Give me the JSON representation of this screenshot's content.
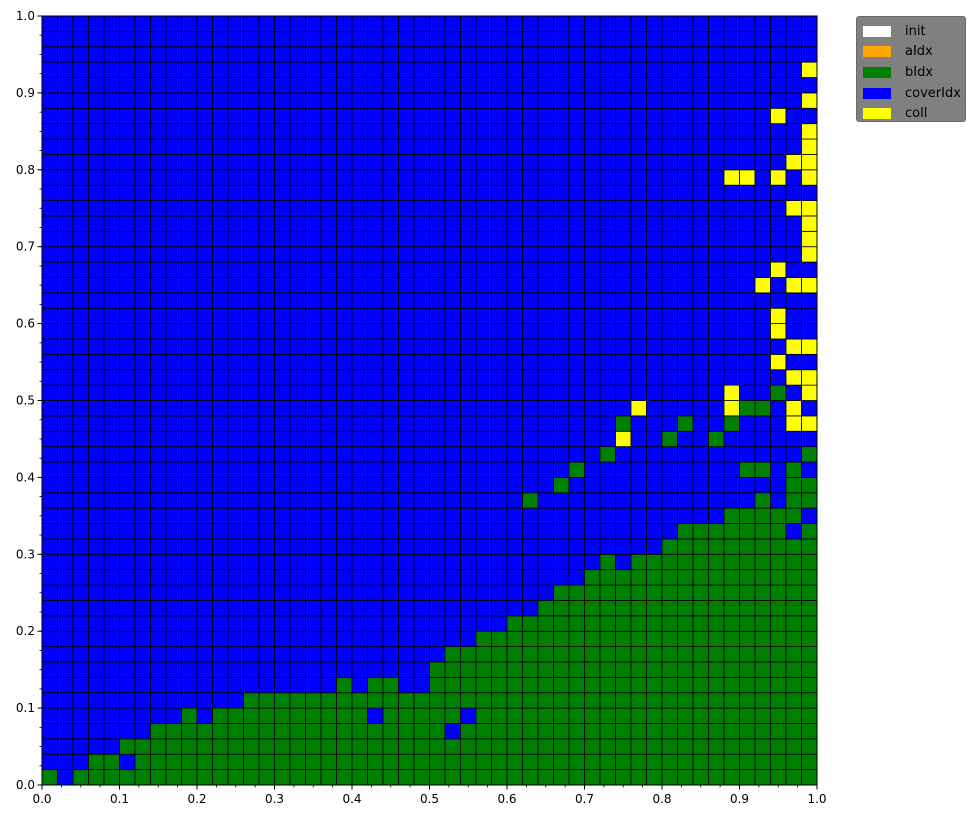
{
  "chart_data": {
    "type": "heatmap",
    "grid_size": 50,
    "xlim": [
      0.0,
      1.0
    ],
    "ylim": [
      0.0,
      1.0
    ],
    "xticks": [
      0.0,
      0.1,
      0.2,
      0.3,
      0.4,
      0.5,
      0.6,
      0.7,
      0.8,
      0.9,
      1.0
    ],
    "yticks": [
      0.0,
      0.1,
      0.2,
      0.3,
      0.4,
      0.5,
      0.6,
      0.7,
      0.8,
      0.9,
      1.0
    ],
    "xtick_labels": [
      "0.0",
      "0.1",
      "0.2",
      "0.3",
      "0.4",
      "0.5",
      "0.6",
      "0.7",
      "0.8",
      "0.9",
      "1.0"
    ],
    "ytick_labels": [
      "0.0",
      "0.1",
      "0.2",
      "0.3",
      "0.4",
      "0.5",
      "0.6",
      "0.7",
      "0.8",
      "0.9",
      "1.0"
    ],
    "default_category": "coverIdx",
    "categories": [
      {
        "name": "init",
        "color": "#ffffff"
      },
      {
        "name": "aIdx",
        "color": "#ffa500"
      },
      {
        "name": "bIdx",
        "color": "#008000"
      },
      {
        "name": "coverIdx",
        "color": "#0000ff"
      },
      {
        "name": "coll",
        "color": "#ffff00"
      }
    ],
    "green_column_heights": [
      1,
      0,
      1,
      2,
      2,
      3,
      3,
      4,
      4,
      5,
      4,
      5,
      5,
      6,
      6,
      6,
      6,
      6,
      6,
      7,
      6,
      7,
      7,
      6,
      6,
      8,
      9,
      9,
      10,
      10,
      11,
      11,
      12,
      13,
      13,
      14,
      15,
      14,
      15,
      15,
      16,
      17,
      17,
      17,
      18,
      18,
      19,
      19,
      20,
      20
    ],
    "blue_cells": [
      [
        1,
        0
      ],
      [
        5,
        1
      ],
      [
        21,
        4
      ],
      [
        22,
        12
      ],
      [
        26,
        14
      ],
      [
        28,
        15
      ],
      [
        30,
        18
      ],
      [
        32,
        17
      ],
      [
        32,
        18
      ],
      [
        33,
        18
      ],
      [
        35,
        17
      ],
      [
        36,
        17
      ],
      [
        26,
        3
      ],
      [
        27,
        4
      ],
      [
        35,
        21
      ],
      [
        36,
        20
      ],
      [
        38,
        22
      ],
      [
        36,
        22
      ],
      [
        47,
        18
      ],
      [
        48,
        16
      ],
      [
        49,
        17
      ],
      [
        44,
        20
      ],
      [
        46,
        21
      ],
      [
        47,
        20
      ],
      [
        47,
        21
      ]
    ],
    "green_cells": [
      [
        31,
        18
      ],
      [
        33,
        19
      ],
      [
        34,
        20
      ],
      [
        36,
        21
      ],
      [
        40,
        22
      ],
      [
        41,
        23
      ],
      [
        44,
        23
      ],
      [
        45,
        24
      ],
      [
        46,
        24
      ],
      [
        45,
        20
      ],
      [
        46,
        20
      ],
      [
        43,
        22
      ],
      [
        48,
        20
      ],
      [
        49,
        21
      ],
      [
        47,
        25
      ],
      [
        37,
        23
      ],
      [
        38,
        24
      ]
    ],
    "coll_cells": [
      [
        49,
        46
      ],
      [
        49,
        44
      ],
      [
        47,
        43
      ],
      [
        49,
        42
      ],
      [
        49,
        41
      ],
      [
        48,
        40
      ],
      [
        49,
        40
      ],
      [
        44,
        39
      ],
      [
        45,
        39
      ],
      [
        47,
        39
      ],
      [
        49,
        39
      ],
      [
        48,
        37
      ],
      [
        49,
        37
      ],
      [
        49,
        36
      ],
      [
        49,
        35
      ],
      [
        49,
        34
      ],
      [
        47,
        33
      ],
      [
        46,
        32
      ],
      [
        48,
        32
      ],
      [
        49,
        32
      ],
      [
        47,
        30
      ],
      [
        47,
        29
      ],
      [
        48,
        28
      ],
      [
        49,
        28
      ],
      [
        47,
        27
      ],
      [
        48,
        26
      ],
      [
        49,
        26
      ],
      [
        44,
        25
      ],
      [
        49,
        25
      ],
      [
        38,
        24
      ],
      [
        44,
        24
      ],
      [
        48,
        24
      ],
      [
        49,
        23
      ],
      [
        37,
        22
      ],
      [
        48,
        23
      ],
      [
        49,
        23
      ]
    ]
  },
  "legend": {
    "items": [
      {
        "label": "init",
        "color": "#ffffff"
      },
      {
        "label": "aIdx",
        "color": "#ffa500"
      },
      {
        "label": "bIdx",
        "color": "#008000"
      },
      {
        "label": "coverIdx",
        "color": "#0000ff"
      },
      {
        "label": "coll",
        "color": "#ffff00"
      }
    ]
  }
}
